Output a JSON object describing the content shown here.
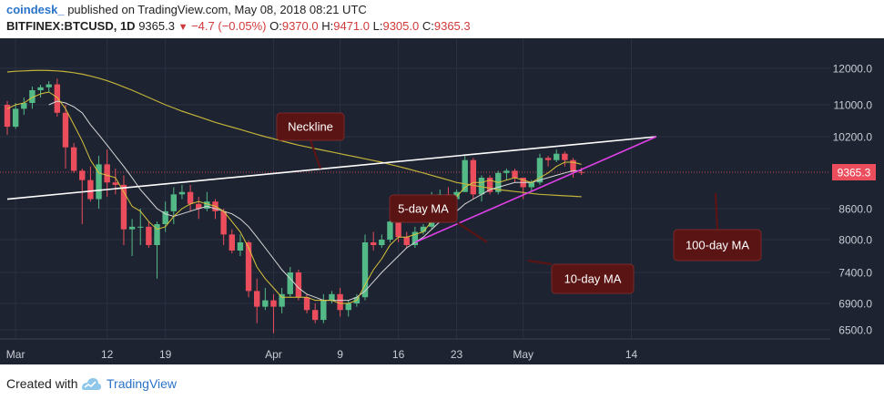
{
  "header": {
    "brand": "coindesk_",
    "published": " published on TradingView.com, May 08, 2018 08:21 UTC",
    "symbol": "BITFINEX:BTCUSD, 1D",
    "last": "9365.3",
    "change": "−4.7 (−0.05%)",
    "o_label": "O:",
    "o_value": "9370.0",
    "h_label": "H:",
    "h_value": "9471.0",
    "l_label": "L:",
    "l_value": "9305.0",
    "c_label": "C:",
    "c_value": "9365.3"
  },
  "footer": {
    "created_with": "Created with",
    "brand": "TradingView"
  },
  "colors": {
    "background": "#1d2331",
    "up": "#53b987",
    "down": "#eb4d5c",
    "ma5": "#d8c33a",
    "ma10": "#d8d8d8",
    "ma100": "#c2b23a",
    "neckline": "#ffffff",
    "support": "#e040e8",
    "callout": "#5b1414"
  },
  "chart_data": {
    "type": "candlestick",
    "yaxis": {
      "range": [
        6150,
        12650
      ],
      "ticks": [
        "12000.0",
        "11000.0",
        "10200.0",
        "9365.3",
        "8600.0",
        "8000.0",
        "7400.0",
        "6900.0",
        "6500.0"
      ],
      "tick_values": [
        12000,
        11000,
        10200,
        9365.3,
        8600,
        8000,
        7400,
        6900,
        6500
      ]
    },
    "xaxis": {
      "ticks": [
        "Mar",
        "12",
        "19",
        "Apr",
        "9",
        "16",
        "23",
        "May",
        "14"
      ],
      "tick_dates": [
        "2018-03-01",
        "2018-03-12",
        "2018-03-19",
        "2018-04-01",
        "2018-04-09",
        "2018-04-16",
        "2018-04-23",
        "2018-05-01",
        "2018-05-14"
      ],
      "range": [
        "2018-03-01",
        "2018-05-17"
      ]
    },
    "last_price": 9365.3,
    "last_price_label": "9365.3",
    "candles": [
      {
        "date": "2018-02-28",
        "o": 11000,
        "h": 11100,
        "l": 10250,
        "c": 10450
      },
      {
        "date": "2018-03-01",
        "o": 10450,
        "h": 11050,
        "l": 10400,
        "c": 10900
      },
      {
        "date": "2018-03-02",
        "o": 10900,
        "h": 11200,
        "l": 10750,
        "c": 11050
      },
      {
        "date": "2018-03-03",
        "o": 11050,
        "h": 11500,
        "l": 10900,
        "c": 11400
      },
      {
        "date": "2018-03-04",
        "o": 11400,
        "h": 11550,
        "l": 11200,
        "c": 11480
      },
      {
        "date": "2018-03-05",
        "o": 11480,
        "h": 11650,
        "l": 11350,
        "c": 11560
      },
      {
        "date": "2018-03-06",
        "o": 11560,
        "h": 11720,
        "l": 10700,
        "c": 10800
      },
      {
        "date": "2018-03-07",
        "o": 10800,
        "h": 11000,
        "l": 9450,
        "c": 9950
      },
      {
        "date": "2018-03-08",
        "o": 9950,
        "h": 10050,
        "l": 9350,
        "c": 9400
      },
      {
        "date": "2018-03-09",
        "o": 9400,
        "h": 9450,
        "l": 8300,
        "c": 9200
      },
      {
        "date": "2018-03-10",
        "o": 9200,
        "h": 9500,
        "l": 8750,
        "c": 8800
      },
      {
        "date": "2018-03-11",
        "o": 8800,
        "h": 9750,
        "l": 8600,
        "c": 9550
      },
      {
        "date": "2018-03-12",
        "o": 9550,
        "h": 9900,
        "l": 8850,
        "c": 9150
      },
      {
        "date": "2018-03-13",
        "o": 9150,
        "h": 9450,
        "l": 8900,
        "c": 9100
      },
      {
        "date": "2018-03-14",
        "o": 9100,
        "h": 9300,
        "l": 7900,
        "c": 8200
      },
      {
        "date": "2018-03-15",
        "o": 8200,
        "h": 8400,
        "l": 7700,
        "c": 8250
      },
      {
        "date": "2018-03-16",
        "o": 8250,
        "h": 8600,
        "l": 7900,
        "c": 8250
      },
      {
        "date": "2018-03-17",
        "o": 8250,
        "h": 8350,
        "l": 7850,
        "c": 7900
      },
      {
        "date": "2018-03-18",
        "o": 7900,
        "h": 8350,
        "l": 7300,
        "c": 8300
      },
      {
        "date": "2018-03-19",
        "o": 8300,
        "h": 8750,
        "l": 8150,
        "c": 8550
      },
      {
        "date": "2018-03-20",
        "o": 8550,
        "h": 9050,
        "l": 8300,
        "c": 8900
      },
      {
        "date": "2018-03-21",
        "o": 8900,
        "h": 9100,
        "l": 8800,
        "c": 8950
      },
      {
        "date": "2018-03-22",
        "o": 8950,
        "h": 9100,
        "l": 8550,
        "c": 8700
      },
      {
        "date": "2018-03-23",
        "o": 8700,
        "h": 8850,
        "l": 8400,
        "c": 8600
      },
      {
        "date": "2018-03-24",
        "o": 8600,
        "h": 8950,
        "l": 8550,
        "c": 8750
      },
      {
        "date": "2018-03-25",
        "o": 8750,
        "h": 8800,
        "l": 8400,
        "c": 8550
      },
      {
        "date": "2018-03-26",
        "o": 8550,
        "h": 8600,
        "l": 7900,
        "c": 8100
      },
      {
        "date": "2018-03-27",
        "o": 8100,
        "h": 8200,
        "l": 7750,
        "c": 7800
      },
      {
        "date": "2018-03-28",
        "o": 7800,
        "h": 8100,
        "l": 7700,
        "c": 7950
      },
      {
        "date": "2018-03-29",
        "o": 7950,
        "h": 7980,
        "l": 7000,
        "c": 7100
      },
      {
        "date": "2018-03-30",
        "o": 7100,
        "h": 7300,
        "l": 6600,
        "c": 6850
      },
      {
        "date": "2018-03-31",
        "o": 6850,
        "h": 7150,
        "l": 6800,
        "c": 6950
      },
      {
        "date": "2018-04-01",
        "o": 6950,
        "h": 7050,
        "l": 6450,
        "c": 6850
      },
      {
        "date": "2018-04-02",
        "o": 6850,
        "h": 7150,
        "l": 6750,
        "c": 7050
      },
      {
        "date": "2018-04-03",
        "o": 7050,
        "h": 7500,
        "l": 7000,
        "c": 7400
      },
      {
        "date": "2018-04-04",
        "o": 7400,
        "h": 7450,
        "l": 6950,
        "c": 7000
      },
      {
        "date": "2018-04-05",
        "o": 7000,
        "h": 7050,
        "l": 6750,
        "c": 6800
      },
      {
        "date": "2018-04-06",
        "o": 6800,
        "h": 6900,
        "l": 6600,
        "c": 6650
      },
      {
        "date": "2018-04-07",
        "o": 6650,
        "h": 7050,
        "l": 6600,
        "c": 6950
      },
      {
        "date": "2018-04-08",
        "o": 6950,
        "h": 7100,
        "l": 6900,
        "c": 7050
      },
      {
        "date": "2018-04-09",
        "o": 7050,
        "h": 7150,
        "l": 6700,
        "c": 6800
      },
      {
        "date": "2018-04-10",
        "o": 6800,
        "h": 6950,
        "l": 6700,
        "c": 6900
      },
      {
        "date": "2018-04-11",
        "o": 6900,
        "h": 7050,
        "l": 6850,
        "c": 7000
      },
      {
        "date": "2018-04-12",
        "o": 7000,
        "h": 8100,
        "l": 6950,
        "c": 7950
      },
      {
        "date": "2018-04-13",
        "o": 7950,
        "h": 8150,
        "l": 7800,
        "c": 7900
      },
      {
        "date": "2018-04-14",
        "o": 7900,
        "h": 8100,
        "l": 7850,
        "c": 8000
      },
      {
        "date": "2018-04-15",
        "o": 8000,
        "h": 8450,
        "l": 7950,
        "c": 8350
      },
      {
        "date": "2018-04-16",
        "o": 8350,
        "h": 8450,
        "l": 7950,
        "c": 8050
      },
      {
        "date": "2018-04-17",
        "o": 8050,
        "h": 8150,
        "l": 7850,
        "c": 7900
      },
      {
        "date": "2018-04-18",
        "o": 7900,
        "h": 8250,
        "l": 7850,
        "c": 8150
      },
      {
        "date": "2018-04-19",
        "o": 8150,
        "h": 8300,
        "l": 8100,
        "c": 8250
      },
      {
        "date": "2018-04-20",
        "o": 8250,
        "h": 8950,
        "l": 8200,
        "c": 8850
      },
      {
        "date": "2018-04-21",
        "o": 8850,
        "h": 9000,
        "l": 8700,
        "c": 8900
      },
      {
        "date": "2018-04-22",
        "o": 8900,
        "h": 9050,
        "l": 8800,
        "c": 8800
      },
      {
        "date": "2018-04-23",
        "o": 8800,
        "h": 9000,
        "l": 8750,
        "c": 8950
      },
      {
        "date": "2018-04-24",
        "o": 8950,
        "h": 9750,
        "l": 8950,
        "c": 9650
      },
      {
        "date": "2018-04-25",
        "o": 9650,
        "h": 9700,
        "l": 8800,
        "c": 8900
      },
      {
        "date": "2018-04-26",
        "o": 8900,
        "h": 9300,
        "l": 8750,
        "c": 9250
      },
      {
        "date": "2018-04-27",
        "o": 9250,
        "h": 9300,
        "l": 8900,
        "c": 8950
      },
      {
        "date": "2018-04-28",
        "o": 8950,
        "h": 9400,
        "l": 8900,
        "c": 9350
      },
      {
        "date": "2018-04-29",
        "o": 9350,
        "h": 9450,
        "l": 9200,
        "c": 9400
      },
      {
        "date": "2018-04-30",
        "o": 9400,
        "h": 9450,
        "l": 9150,
        "c": 9250
      },
      {
        "date": "2018-05-01",
        "o": 9250,
        "h": 9250,
        "l": 8800,
        "c": 9050
      },
      {
        "date": "2018-05-02",
        "o": 9050,
        "h": 9200,
        "l": 8950,
        "c": 9150
      },
      {
        "date": "2018-05-03",
        "o": 9150,
        "h": 9800,
        "l": 9100,
        "c": 9700
      },
      {
        "date": "2018-05-04",
        "o": 9700,
        "h": 9750,
        "l": 9500,
        "c": 9650
      },
      {
        "date": "2018-05-05",
        "o": 9650,
        "h": 9900,
        "l": 9600,
        "c": 9800
      },
      {
        "date": "2018-05-06",
        "o": 9800,
        "h": 9850,
        "l": 9500,
        "c": 9650
      },
      {
        "date": "2018-05-07",
        "o": 9650,
        "h": 9700,
        "l": 9250,
        "c": 9370
      },
      {
        "date": "2018-05-08",
        "o": 9370,
        "h": 9471,
        "l": 9305,
        "c": 9365.3
      }
    ],
    "ma5": [
      10900,
      11000,
      11050,
      11200,
      11300,
      11350,
      11200,
      10900,
      10500,
      10100,
      9650,
      9350,
      9300,
      9250,
      8950,
      8650,
      8550,
      8350,
      8200,
      8250,
      8450,
      8600,
      8700,
      8750,
      8700,
      8650,
      8550,
      8350,
      8150,
      7850,
      7500,
      7300,
      7150,
      7000,
      7000,
      7000,
      7000,
      6950,
      6950,
      6950,
      6900,
      6900,
      6950,
      7200,
      7450,
      7650,
      7900,
      8050,
      8050,
      8100,
      8150,
      8350,
      8550,
      8700,
      8850,
      9050,
      9150,
      9150,
      9200,
      9150,
      9200,
      9250,
      9200,
      9150,
      9250,
      9350,
      9500,
      9600,
      9600,
      9550
    ],
    "ma10": [
      null,
      null,
      null,
      null,
      null,
      11000,
      11100,
      11050,
      10950,
      10800,
      10500,
      10250,
      10000,
      9750,
      9500,
      9250,
      9000,
      8800,
      8600,
      8500,
      8450,
      8500,
      8550,
      8600,
      8650,
      8600,
      8550,
      8500,
      8400,
      8250,
      8050,
      7850,
      7650,
      7450,
      7300,
      7150,
      7050,
      7000,
      6950,
      6950,
      6950,
      6950,
      7000,
      7100,
      7250,
      7400,
      7550,
      7700,
      7850,
      7950,
      8050,
      8200,
      8350,
      8450,
      8550,
      8700,
      8800,
      8900,
      9000,
      9050,
      9100,
      9150,
      9150,
      9150,
      9200,
      9250,
      9300,
      9350,
      9400,
      9400
    ],
    "ma100": [
      11900,
      11920,
      11930,
      11940,
      11945,
      11940,
      11930,
      11910,
      11880,
      11840,
      11790,
      11730,
      11660,
      11580,
      11490,
      11400,
      11300,
      11200,
      11100,
      11000,
      10920,
      10840,
      10770,
      10700,
      10630,
      10560,
      10500,
      10440,
      10380,
      10320,
      10260,
      10200,
      10150,
      10100,
      10050,
      10000,
      9960,
      9920,
      9880,
      9840,
      9800,
      9760,
      9720,
      9680,
      9640,
      9600,
      9550,
      9500,
      9450,
      9400,
      9350,
      9300,
      9250,
      9200,
      9150,
      9120,
      9090,
      9060,
      9030,
      9000,
      8980,
      8960,
      8940,
      8920,
      8900,
      8890,
      8880,
      8870,
      8860,
      8850
    ],
    "neckline": {
      "from": {
        "date": "2018-02-28",
        "price": 8800
      },
      "to": {
        "date": "2018-05-17",
        "price": 10200
      }
    },
    "support": {
      "from": {
        "date": "2018-04-18",
        "price": 7950
      },
      "to": {
        "date": "2018-05-17",
        "price": 10200
      }
    },
    "annotations": [
      {
        "label": "Neckline",
        "target": "neckline"
      },
      {
        "label": "5-day MA",
        "target": "ma5"
      },
      {
        "label": "10-day MA",
        "target": "ma10"
      },
      {
        "label": "100-day MA",
        "target": "ma100"
      }
    ]
  }
}
